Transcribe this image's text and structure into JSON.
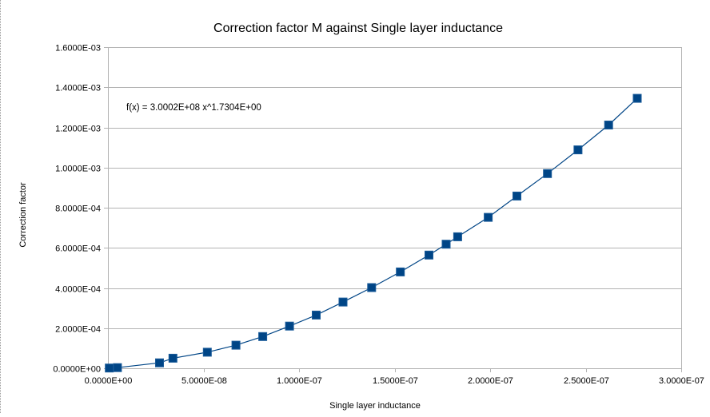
{
  "chart_data": {
    "type": "scatter",
    "title": "Correction factor M against Single layer inductance",
    "xlabel": "Single layer inductance",
    "ylabel": "Correction factor",
    "xlim": [
      0,
      3e-07
    ],
    "ylim": [
      0,
      0.0016
    ],
    "x_ticks": [
      0,
      5e-08,
      1e-07,
      1.5e-07,
      2e-07,
      2.5e-07,
      3e-07
    ],
    "x_tick_labels": [
      "0.0000E+00",
      "5.0000E-08",
      "1.0000E-07",
      "1.5000E-07",
      "2.0000E-07",
      "2.5000E-07",
      "3.0000E-07"
    ],
    "y_ticks": [
      0,
      0.0002,
      0.0004,
      0.0006,
      0.0008,
      0.001,
      0.0012,
      0.0014,
      0.0016
    ],
    "y_tick_labels": [
      "0.0000E+00",
      "2.0000E-04",
      "4.0000E-04",
      "6.0000E-04",
      "8.0000E-04",
      "1.0000E-03",
      "1.2000E-03",
      "1.4000E-03",
      "1.6000E-03"
    ],
    "grid": {
      "horizontal": true,
      "vertical": false
    },
    "legend": "none",
    "trendline": {
      "type": "power",
      "coefficient": 300020000.0,
      "exponent": 1.7304,
      "label": "f(x) = 3.0002E+08 x^1.7304E+00"
    },
    "series": [
      {
        "x": [
          7e-10,
          5e-09,
          2.7e-08,
          3.4e-08,
          5.2e-08,
          6.7e-08,
          8.1e-08,
          9.5e-08,
          1.09e-07,
          1.23e-07,
          1.38e-07,
          1.53e-07,
          1.68e-07,
          1.77e-07,
          1.83e-07,
          1.99e-07,
          2.14e-07,
          2.3e-07,
          2.46e-07,
          2.62e-07,
          2.77e-07
        ],
        "y": [
          1e-06,
          3e-06,
          2.7e-05,
          5e-05,
          8e-05,
          0.000115,
          0.000158,
          0.00021,
          0.000265,
          0.00033,
          0.000402,
          0.00048,
          0.000564,
          0.000618,
          0.000655,
          0.000752,
          0.000858,
          0.00097,
          0.001088,
          0.001212,
          0.001345
        ]
      }
    ],
    "colors": {
      "marker_fill": "#004586",
      "marker_stroke": "#1a5b99",
      "line": "#004586",
      "grid": "#b3b3b3",
      "axis": "#b3b3b3"
    }
  }
}
